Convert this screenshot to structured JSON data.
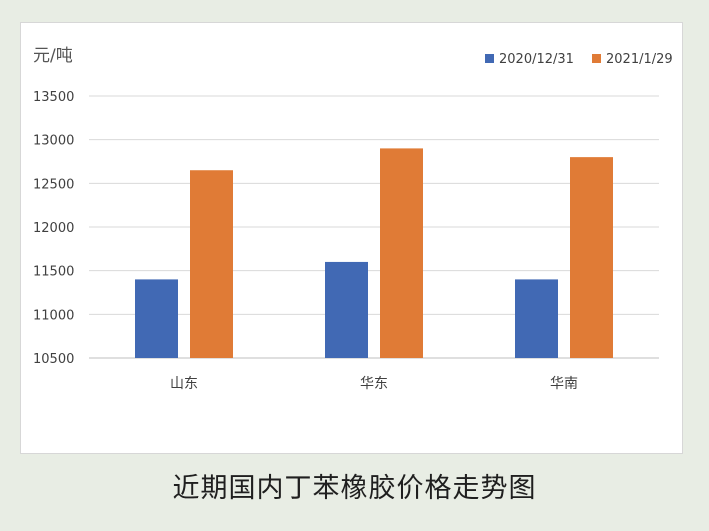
{
  "caption": "近期国内丁苯橡胶价格走势图",
  "chart_data": {
    "type": "bar",
    "ylabel": "元/吨",
    "categories": [
      "山东",
      "华东",
      "华南"
    ],
    "series": [
      {
        "name": "2020/12/31",
        "color": "#4169b4",
        "values": [
          11400,
          11600,
          11400
        ]
      },
      {
        "name": "2021/1/29",
        "color": "#e07b36",
        "values": [
          12650,
          12900,
          12800
        ]
      }
    ],
    "ylim": [
      10500,
      13500
    ],
    "yticks": [
      10500,
      11000,
      11500,
      12000,
      12500,
      13000,
      13500
    ],
    "grid": true,
    "legend_position": "top-right"
  }
}
